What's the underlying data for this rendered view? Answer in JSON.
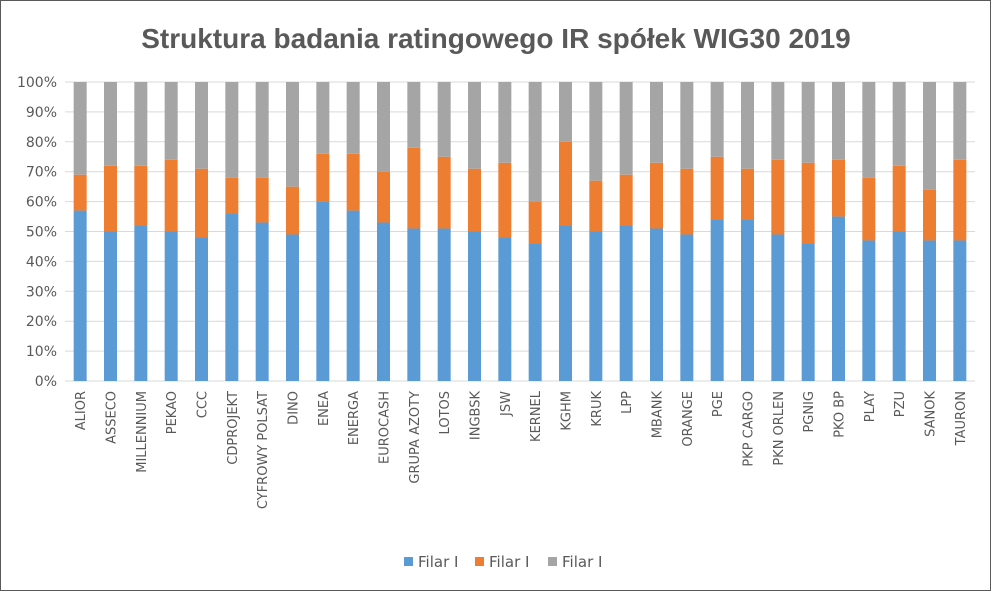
{
  "chart_data": {
    "type": "bar",
    "stacked": true,
    "title": "Struktura badania ratingowego IR spółek WIG30 2019",
    "xlabel": "",
    "ylabel": "",
    "ylim": [
      0,
      100
    ],
    "yticks": [
      "0%",
      "10%",
      "20%",
      "30%",
      "40%",
      "50%",
      "60%",
      "70%",
      "80%",
      "90%",
      "100%"
    ],
    "grid": true,
    "legend_position": "bottom",
    "categories": [
      "ALIOR",
      "ASSECO",
      "MILLENNIUM",
      "PEKAO",
      "CCC",
      "CDPROJEKT",
      "CYFROWY POLSAT",
      "DINO",
      "ENEA",
      "ENERGA",
      "EUROCASH",
      "GRUPA AZOTY",
      "LOTOS",
      "INGBSK",
      "JSW",
      "KERNEL",
      "KGHM",
      "KRUK",
      "LPP",
      "MBANK",
      "ORANGE",
      "PGE",
      "PKP CARGO",
      "PKN ORLEN",
      "PGNIG",
      "PKO BP",
      "PLAY",
      "PZU",
      "SANOK",
      "TAURON"
    ],
    "series": [
      {
        "name": "Filar I",
        "color": "#5B9BD5",
        "values": [
          57,
          50,
          52,
          50,
          48,
          56,
          53,
          49,
          60,
          57,
          53,
          51,
          51,
          50,
          48,
          46,
          52,
          50,
          52,
          51,
          49,
          54,
          54,
          49,
          46,
          55,
          47,
          50,
          47,
          47
        ]
      },
      {
        "name": "Filar I",
        "color": "#ED7D31",
        "values": [
          12,
          22,
          20,
          24,
          23,
          12,
          15,
          16,
          16,
          19,
          17,
          27,
          24,
          21,
          25,
          14,
          28,
          17,
          17,
          22,
          22,
          21,
          17,
          25,
          27,
          19,
          21,
          22,
          17,
          27
        ]
      },
      {
        "name": "Filar I",
        "color": "#A5A5A5",
        "values": [
          31,
          28,
          28,
          26,
          29,
          32,
          32,
          35,
          24,
          24,
          30,
          22,
          25,
          29,
          27,
          40,
          20,
          33,
          31,
          27,
          29,
          25,
          29,
          26,
          27,
          26,
          32,
          28,
          36,
          26
        ]
      }
    ]
  }
}
